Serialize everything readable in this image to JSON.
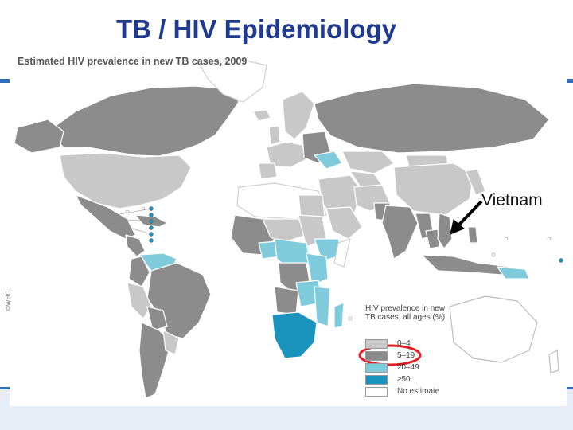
{
  "slide": {
    "title": "TB / HIV Epidemiology"
  },
  "map": {
    "title": "Estimated HIV prevalence in new TB cases, 2009",
    "legend": {
      "title": "HIV prevalence in new TB cases, all ages (%)",
      "items": [
        {
          "label": "0–4",
          "color": "#c8c8c8"
        },
        {
          "label": "5–19",
          "color": "#8c8c8c"
        },
        {
          "label": "20–49",
          "color": "#7fcadb"
        },
        {
          "label": "≥50",
          "color": "#1a93bd"
        },
        {
          "label": "No estimate",
          "color": "#ffffff"
        }
      ],
      "highlighted_item": "5–19",
      "highlight_color": "#e01f26"
    },
    "annotation": {
      "label": "Vietnam",
      "arrow_color": "#000000"
    },
    "side_note": "©WHO",
    "colors": {
      "ocean": "#ffffff",
      "border": "#ffffff",
      "accent": "#2f6db6"
    }
  }
}
